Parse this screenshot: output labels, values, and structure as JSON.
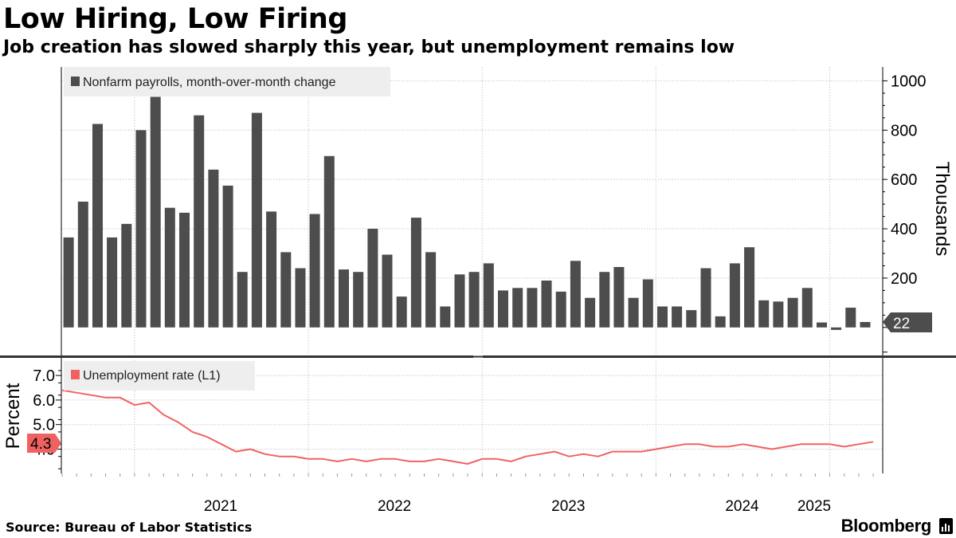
{
  "header": {
    "title": "Low Hiring, Low Firing",
    "subtitle": "Job creation has slowed sharply this year, but unemployment remains low"
  },
  "footer": {
    "source": "Source: Bureau of Labor Statistics",
    "brand": "Bloomberg"
  },
  "colors": {
    "bars": "#4d4d4d",
    "line": "#f06262",
    "legend_bg": "#eeeeee"
  },
  "chart_data": [
    {
      "type": "bar",
      "title": "Nonfarm payrolls, month-over-month change",
      "legend": "Nonfarm payrolls, month-over-month change",
      "ylabel": "Thousands",
      "ylim": [
        -100,
        1050
      ],
      "yticks": [
        200,
        400,
        600,
        800,
        1000
      ],
      "yaxis_side": "right",
      "last_value_label": "22",
      "start": "2020-08",
      "values": [
        365,
        510,
        825,
        365,
        420,
        800,
        935,
        485,
        465,
        860,
        640,
        575,
        225,
        870,
        470,
        305,
        240,
        460,
        695,
        235,
        225,
        400,
        295,
        125,
        445,
        305,
        85,
        215,
        225,
        260,
        150,
        160,
        160,
        190,
        145,
        270,
        120,
        225,
        245,
        120,
        195,
        85,
        85,
        70,
        240,
        45,
        260,
        325,
        110,
        105,
        120,
        160,
        20,
        -10,
        80,
        22
      ]
    },
    {
      "type": "line",
      "title": "Unemployment rate (L1)",
      "legend": "Unemployment rate (L1)",
      "ylabel": "Percent",
      "ylim": [
        3.0,
        7.5
      ],
      "yticks": [
        "7.0",
        "6.0",
        "5.0",
        "4.0"
      ],
      "yaxis_side": "left",
      "last_value_label": "4.3",
      "start": "2020-08",
      "values": [
        6.4,
        6.3,
        6.2,
        6.1,
        6.1,
        5.8,
        5.9,
        5.4,
        5.1,
        4.7,
        4.5,
        4.2,
        3.9,
        4.0,
        3.8,
        3.7,
        3.7,
        3.6,
        3.6,
        3.5,
        3.6,
        3.5,
        3.6,
        3.6,
        3.5,
        3.5,
        3.6,
        3.5,
        3.4,
        3.6,
        3.6,
        3.5,
        3.7,
        3.8,
        3.9,
        3.7,
        3.8,
        3.7,
        3.9,
        3.9,
        3.9,
        4.0,
        4.1,
        4.2,
        4.2,
        4.1,
        4.1,
        4.2,
        4.1,
        4.0,
        4.1,
        4.2,
        4.2,
        4.2,
        4.1,
        4.2,
        4.3
      ]
    }
  ],
  "x_axis": {
    "year_labels": [
      "2021",
      "2022",
      "2023",
      "2024",
      "2025"
    ]
  }
}
